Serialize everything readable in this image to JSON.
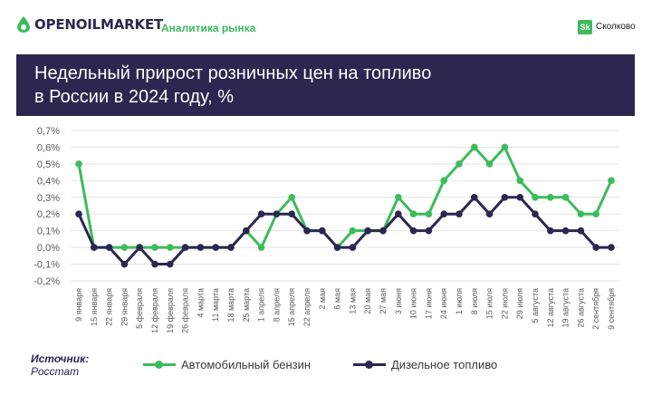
{
  "header": {
    "logo_text": "OPENOILMARKET",
    "tagline": "Аналитика рынка",
    "sk_badge": "Sk",
    "sk_text": "Сколково"
  },
  "title_line1": "Недельный прирост розничных цен на топливо",
  "title_line2": "в России в 2024 году, %",
  "source": {
    "label": "Источник:",
    "value": "Росстат"
  },
  "colors": {
    "gasoline": "#3dbb5c",
    "diesel": "#2b2750",
    "title_bg": "#2b2750",
    "grid": "#e3e3e3"
  },
  "chart_data": {
    "type": "line",
    "categories": [
      "9 января",
      "15 января",
      "22 января",
      "29 января",
      "5 февраля",
      "12 февраля",
      "19 февраля",
      "26 февраля",
      "4 марта",
      "11 марта",
      "18 марта",
      "25 марта",
      "1 апреля",
      "8 апреля",
      "15 апреля",
      "22 апреля",
      "2 мая",
      "6 мая",
      "13 мая",
      "20 мая",
      "27 мая",
      "3 июня",
      "10 июня",
      "17 июня",
      "24 июня",
      "1 июля",
      "8 июля",
      "15 июля",
      "22 июля",
      "29 июля",
      "5 августа",
      "12 августа",
      "19 августа",
      "26 августа",
      "2 сентября",
      "9 сентября"
    ],
    "series": [
      {
        "name": "Автомобильный бензин",
        "values": [
          0.5,
          0,
          0,
          0,
          0,
          0,
          0,
          0,
          0,
          0,
          0,
          0.1,
          0,
          0.2,
          0.3,
          0.1,
          0.1,
          0,
          0.1,
          0.1,
          0.1,
          0.3,
          0.2,
          0.2,
          0.4,
          0.5,
          0.6,
          0.5,
          0.6,
          0.4,
          0.3,
          0.3,
          0.3,
          0.2,
          0.2,
          0.4
        ]
      },
      {
        "name": "Дизельное топливо",
        "values": [
          0.2,
          0,
          0,
          -0.1,
          0,
          -0.1,
          -0.1,
          0,
          0,
          0,
          0,
          0.1,
          0.2,
          0.2,
          0.2,
          0.1,
          0.1,
          0,
          0,
          0.1,
          0.1,
          0.2,
          0.1,
          0.1,
          0.2,
          0.2,
          0.3,
          0.2,
          0.3,
          0.3,
          0.2,
          0.1,
          0.1,
          0.1,
          0,
          0
        ]
      }
    ],
    "y_ticks": [
      "0,7%",
      "0,6%",
      "0,5%",
      "0,4%",
      "0,3%",
      "0,2%",
      "0,1%",
      "0,0%",
      "-0,1%",
      "-0,2%"
    ],
    "ylim": [
      -0.2,
      0.7
    ],
    "grid": true,
    "legend_position": "bottom"
  }
}
